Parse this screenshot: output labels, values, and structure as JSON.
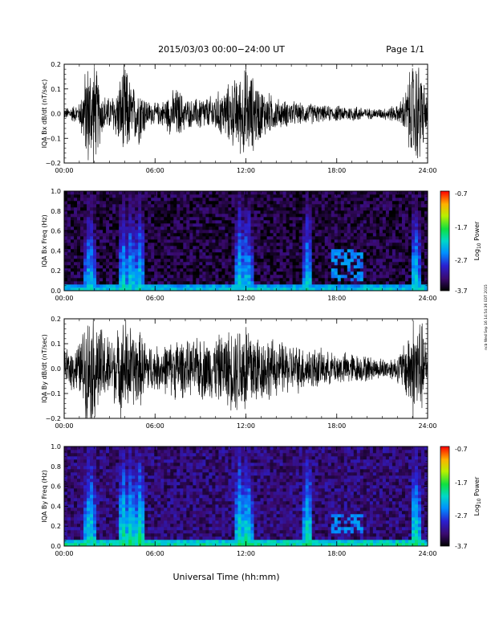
{
  "header": {
    "title": "2015/03/03  00:00−24:00 UT",
    "page": "Page 1/1"
  },
  "xlabel": "Universal Time (hh:mm)",
  "side_stamp": "ncb Wed Sep 16 14:54:36 EDT 2015",
  "colorbar": {
    "label_main": "Log",
    "label_sub": "10",
    "label_tail": " Power",
    "range": [
      -3.7,
      -0.7
    ],
    "ticks": [
      "-0.7",
      "-1.7",
      "-2.7",
      "-3.7"
    ]
  },
  "chart_data": [
    {
      "type": "line",
      "ylabel": "IQA Bx dB/dt (nT/sec)",
      "xlim": [
        "00:00",
        "24:00"
      ],
      "ylim": [
        -0.2,
        0.2
      ],
      "x_ticks": [
        "00:00",
        "06:00",
        "12:00",
        "18:00",
        "24:00"
      ],
      "y_ticks": [
        "0.2",
        "0.1",
        "0.0",
        "−0.1",
        "−0.2"
      ],
      "series": [
        {
          "x_hours": [
            0,
            1,
            1.5,
            2,
            2.5,
            3,
            3.5,
            4,
            4.5,
            5,
            5.5,
            6,
            6.5,
            7,
            7.5,
            8,
            8.5,
            9,
            9.5,
            10,
            10.5,
            11,
            11.5,
            12,
            12.5,
            13,
            13.5,
            14,
            14.5,
            15,
            15.5,
            16,
            16.5,
            17,
            17.5,
            18,
            18.5,
            19,
            19.5,
            20,
            20.5,
            21,
            21.5,
            22,
            22.5,
            23,
            23.5,
            24
          ],
          "amplitude": [
            0.02,
            0.04,
            0.2,
            0.2,
            0.08,
            0.06,
            0.1,
            0.2,
            0.1,
            0.12,
            0.05,
            0.04,
            0.05,
            0.08,
            0.1,
            0.06,
            0.05,
            0.07,
            0.06,
            0.08,
            0.09,
            0.12,
            0.14,
            0.18,
            0.14,
            0.1,
            0.08,
            0.06,
            0.05,
            0.05,
            0.04,
            0.04,
            0.04,
            0.03,
            0.03,
            0.03,
            0.03,
            0.03,
            0.03,
            0.02,
            0.02,
            0.02,
            0.03,
            0.03,
            0.08,
            0.2,
            0.2,
            0.05
          ]
        }
      ]
    },
    {
      "type": "heatmap",
      "ylabel": "IQA Bx Freq (Hz)",
      "xlim": [
        "00:00",
        "24:00"
      ],
      "ylim": [
        0,
        1.0
      ],
      "x_ticks": [
        "00:00",
        "06:00",
        "12:00",
        "18:00",
        "24:00"
      ],
      "y_ticks": [
        "1.0",
        "0.8",
        "0.6",
        "0.4",
        "0.2",
        "0.0"
      ],
      "features": {
        "background_log_power": -3.5,
        "low_freq_band_log_power": -2.2,
        "vertical_bursts_hours": [
          1.7,
          3.9,
          4.4,
          5.0,
          11.6,
          12.1,
          16.1,
          23.2
        ],
        "pc1_band": {
          "start_hour": 17.6,
          "end_hour": 19.8,
          "freq_hz": [
            0.1,
            0.42
          ]
        }
      }
    },
    {
      "type": "line",
      "ylabel": "IQA By dB/dt (nT/sec)",
      "xlim": [
        "00:00",
        "24:00"
      ],
      "ylim": [
        -0.2,
        0.2
      ],
      "x_ticks": [
        "00:00",
        "06:00",
        "12:00",
        "18:00",
        "24:00"
      ],
      "y_ticks": [
        "0.2",
        "0.1",
        "0.0",
        "−0.1",
        "−0.2"
      ],
      "series": [
        {
          "x_hours": [
            0,
            1,
            1.5,
            2,
            2.5,
            3,
            3.5,
            4,
            4.5,
            5,
            5.5,
            6,
            6.5,
            7,
            7.5,
            8,
            8.5,
            9,
            9.5,
            10,
            10.5,
            11,
            11.5,
            12,
            12.5,
            13,
            13.5,
            14,
            14.5,
            15,
            15.5,
            16,
            16.5,
            17,
            17.5,
            18,
            18.5,
            19,
            19.5,
            20,
            20.5,
            21,
            21.5,
            22,
            22.5,
            23,
            23.5,
            24
          ],
          "amplitude": [
            0.06,
            0.1,
            0.2,
            0.2,
            0.15,
            0.12,
            0.14,
            0.2,
            0.15,
            0.14,
            0.1,
            0.08,
            0.09,
            0.1,
            0.12,
            0.1,
            0.1,
            0.12,
            0.11,
            0.12,
            0.13,
            0.15,
            0.17,
            0.2,
            0.16,
            0.12,
            0.12,
            0.1,
            0.1,
            0.09,
            0.09,
            0.08,
            0.08,
            0.07,
            0.06,
            0.06,
            0.06,
            0.06,
            0.05,
            0.05,
            0.04,
            0.04,
            0.04,
            0.05,
            0.1,
            0.2,
            0.2,
            0.08
          ]
        }
      ]
    },
    {
      "type": "heatmap",
      "ylabel": "IQA By Freq (Hz)",
      "xlim": [
        "00:00",
        "24:00"
      ],
      "ylim": [
        0,
        1.0
      ],
      "x_ticks": [
        "00:00",
        "06:00",
        "12:00",
        "18:00",
        "24:00"
      ],
      "y_ticks": [
        "1.0",
        "0.8",
        "0.6",
        "0.4",
        "0.2",
        "0.0"
      ],
      "features": {
        "background_log_power": -3.3,
        "low_freq_band_log_power": -2.0,
        "vertical_bursts_hours": [
          1.7,
          3.9,
          4.4,
          5.0,
          11.6,
          12.1,
          16.1,
          23.2
        ],
        "pc1_band": {
          "start_hour": 17.6,
          "end_hour": 19.8,
          "freq_hz": [
            0.12,
            0.32
          ]
        }
      }
    }
  ]
}
